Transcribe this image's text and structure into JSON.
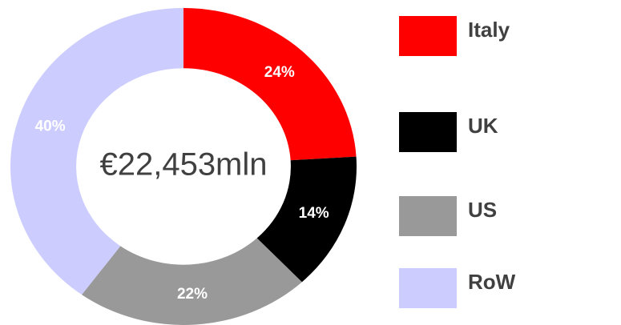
{
  "chart_data": {
    "type": "donut",
    "annotation": "€22,453mln",
    "categories": [
      "Italy",
      "UK",
      "US",
      "RoW"
    ],
    "values": [
      24,
      14,
      22,
      40
    ],
    "value_labels": [
      "24%",
      "14%",
      "22%",
      "40%"
    ],
    "colors": [
      "#ff0000",
      "#000000",
      "#999999",
      "#ccccff"
    ],
    "legend": "right"
  }
}
